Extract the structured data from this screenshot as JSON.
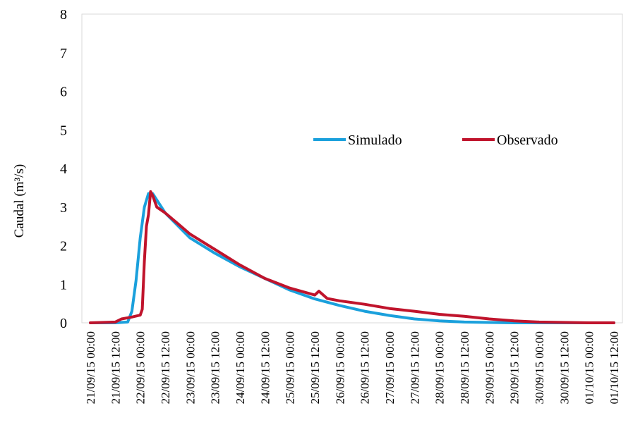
{
  "chart_data": {
    "type": "line",
    "title": "",
    "xlabel": "",
    "ylabel": "Caudal (m³/s)",
    "ylim": [
      0,
      8
    ],
    "xlim": [
      "21/09/15 00:00",
      "01/10/15 12:00"
    ],
    "y_ticks": [
      "0",
      "1",
      "2",
      "3",
      "4",
      "5",
      "6",
      "7",
      "8"
    ],
    "x_ticks": [
      "21/09/15 00:00",
      "21/09/15 12:00",
      "22/09/15 00:00",
      "22/09/15 12:00",
      "23/09/15 00:00",
      "23/09/15 12:00",
      "24/09/15 00:00",
      "24/09/15 12:00",
      "25/09/15 00:00",
      "25/09/15 12:00",
      "26/09/15 00:00",
      "26/09/15 12:00",
      "27/09/15 00:00",
      "27/09/15 12:00",
      "28/09/15 00:00",
      "28/09/15 12:00",
      "29/09/15 00:00",
      "29/09/15 12:00",
      "30/09/15 00:00",
      "30/09/15 12:00",
      "01/10/15 00:00",
      "01/10/15 12:00"
    ],
    "grid": false,
    "legend": "center-right",
    "series": [
      {
        "name": "Simulado",
        "color": "#1aa0dc",
        "points": [
          [
            "21/09/15 00:00",
            0
          ],
          [
            "21/09/15 12:00",
            0
          ],
          [
            "21/09/15 18:00",
            0.02
          ],
          [
            "21/09/15 20:00",
            0.3
          ],
          [
            "21/09/15 22:00",
            1.1
          ],
          [
            "22/09/15 00:00",
            2.2
          ],
          [
            "22/09/15 02:00",
            3.0
          ],
          [
            "22/09/15 04:00",
            3.35
          ],
          [
            "22/09/15 06:00",
            3.35
          ],
          [
            "22/09/15 09:00",
            3.1
          ],
          [
            "22/09/15 12:00",
            2.85
          ],
          [
            "23/09/15 00:00",
            2.2
          ],
          [
            "23/09/15 12:00",
            1.8
          ],
          [
            "24/09/15 00:00",
            1.45
          ],
          [
            "24/09/15 12:00",
            1.15
          ],
          [
            "25/09/15 00:00",
            0.85
          ],
          [
            "25/09/15 12:00",
            0.62
          ],
          [
            "26/09/15 00:00",
            0.45
          ],
          [
            "26/09/15 12:00",
            0.3
          ],
          [
            "27/09/15 00:00",
            0.19
          ],
          [
            "27/09/15 12:00",
            0.1
          ],
          [
            "28/09/15 00:00",
            0.05
          ],
          [
            "28/09/15 12:00",
            0.02
          ],
          [
            "29/09/15 00:00",
            0.01
          ],
          [
            "29/09/15 12:00",
            0
          ],
          [
            "30/09/15 00:00",
            0
          ],
          [
            "01/10/15 00:00",
            0
          ],
          [
            "01/10/15 12:00",
            0
          ]
        ]
      },
      {
        "name": "Observado",
        "color": "#c0142c",
        "points": [
          [
            "21/09/15 00:00",
            0
          ],
          [
            "21/09/15 12:00",
            0.02
          ],
          [
            "21/09/15 15:00",
            0.1
          ],
          [
            "21/09/15 20:00",
            0.15
          ],
          [
            "22/09/15 00:00",
            0.2
          ],
          [
            "22/09/15 01:00",
            0.35
          ],
          [
            "22/09/15 02:00",
            1.6
          ],
          [
            "22/09/15 03:00",
            2.5
          ],
          [
            "22/09/15 04:00",
            2.8
          ],
          [
            "22/09/15 05:00",
            3.4
          ],
          [
            "22/09/15 06:00",
            3.3
          ],
          [
            "22/09/15 08:00",
            3.0
          ],
          [
            "22/09/15 12:00",
            2.85
          ],
          [
            "23/09/15 00:00",
            2.3
          ],
          [
            "23/09/15 12:00",
            1.9
          ],
          [
            "24/09/15 00:00",
            1.5
          ],
          [
            "24/09/15 12:00",
            1.15
          ],
          [
            "25/09/15 00:00",
            0.9
          ],
          [
            "25/09/15 12:00",
            0.72
          ],
          [
            "25/09/15 14:00",
            0.82
          ],
          [
            "25/09/15 18:00",
            0.63
          ],
          [
            "26/09/15 00:00",
            0.57
          ],
          [
            "26/09/15 12:00",
            0.48
          ],
          [
            "27/09/15 00:00",
            0.37
          ],
          [
            "27/09/15 12:00",
            0.3
          ],
          [
            "28/09/15 00:00",
            0.22
          ],
          [
            "28/09/15 12:00",
            0.17
          ],
          [
            "29/09/15 00:00",
            0.1
          ],
          [
            "29/09/15 12:00",
            0.05
          ],
          [
            "30/09/15 00:00",
            0.02
          ],
          [
            "01/10/15 00:00",
            0
          ],
          [
            "01/10/15 12:00",
            0
          ]
        ]
      }
    ]
  }
}
